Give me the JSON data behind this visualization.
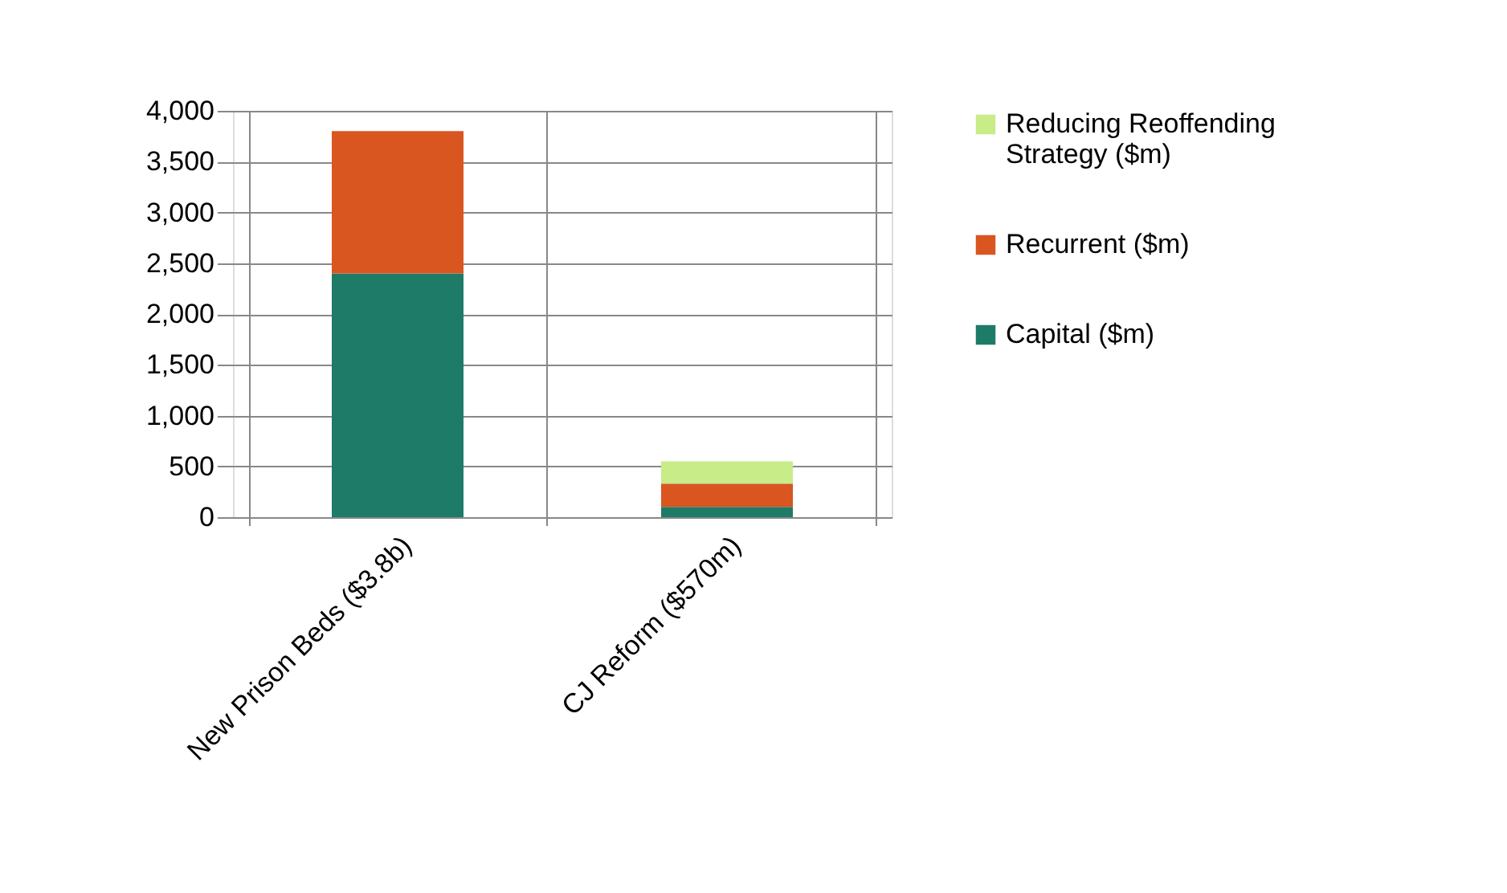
{
  "chart_data": {
    "type": "bar",
    "stacked": true,
    "categories": [
      "New Prison Beds ($3.8b)",
      "CJ Reform ($570m)"
    ],
    "series": [
      {
        "name": "Capital ($m)",
        "color": "#1e7b68",
        "values": [
          2400,
          100
        ]
      },
      {
        "name": "Recurrent ($m)",
        "color": "#d95620",
        "values": [
          1400,
          230
        ]
      },
      {
        "name": "Reducing Reoffending Strategy ($m)",
        "color": "#c8ec88",
        "values": [
          null,
          220
        ]
      }
    ],
    "ylim": [
      0,
      4000
    ],
    "yticks": [
      0,
      500,
      {
        "value": 1000,
        "label": "1,000"
      },
      {
        "value": 1500,
        "label": "1,500"
      },
      {
        "value": 2000,
        "label": "2,000"
      },
      {
        "value": 2500,
        "label": "2,500"
      },
      {
        "value": 3000,
        "label": "3,000"
      },
      {
        "value": 3500,
        "label": "3,500"
      },
      {
        "value": 4000,
        "label": "4,000"
      }
    ],
    "grid": true,
    "legend": "right"
  }
}
